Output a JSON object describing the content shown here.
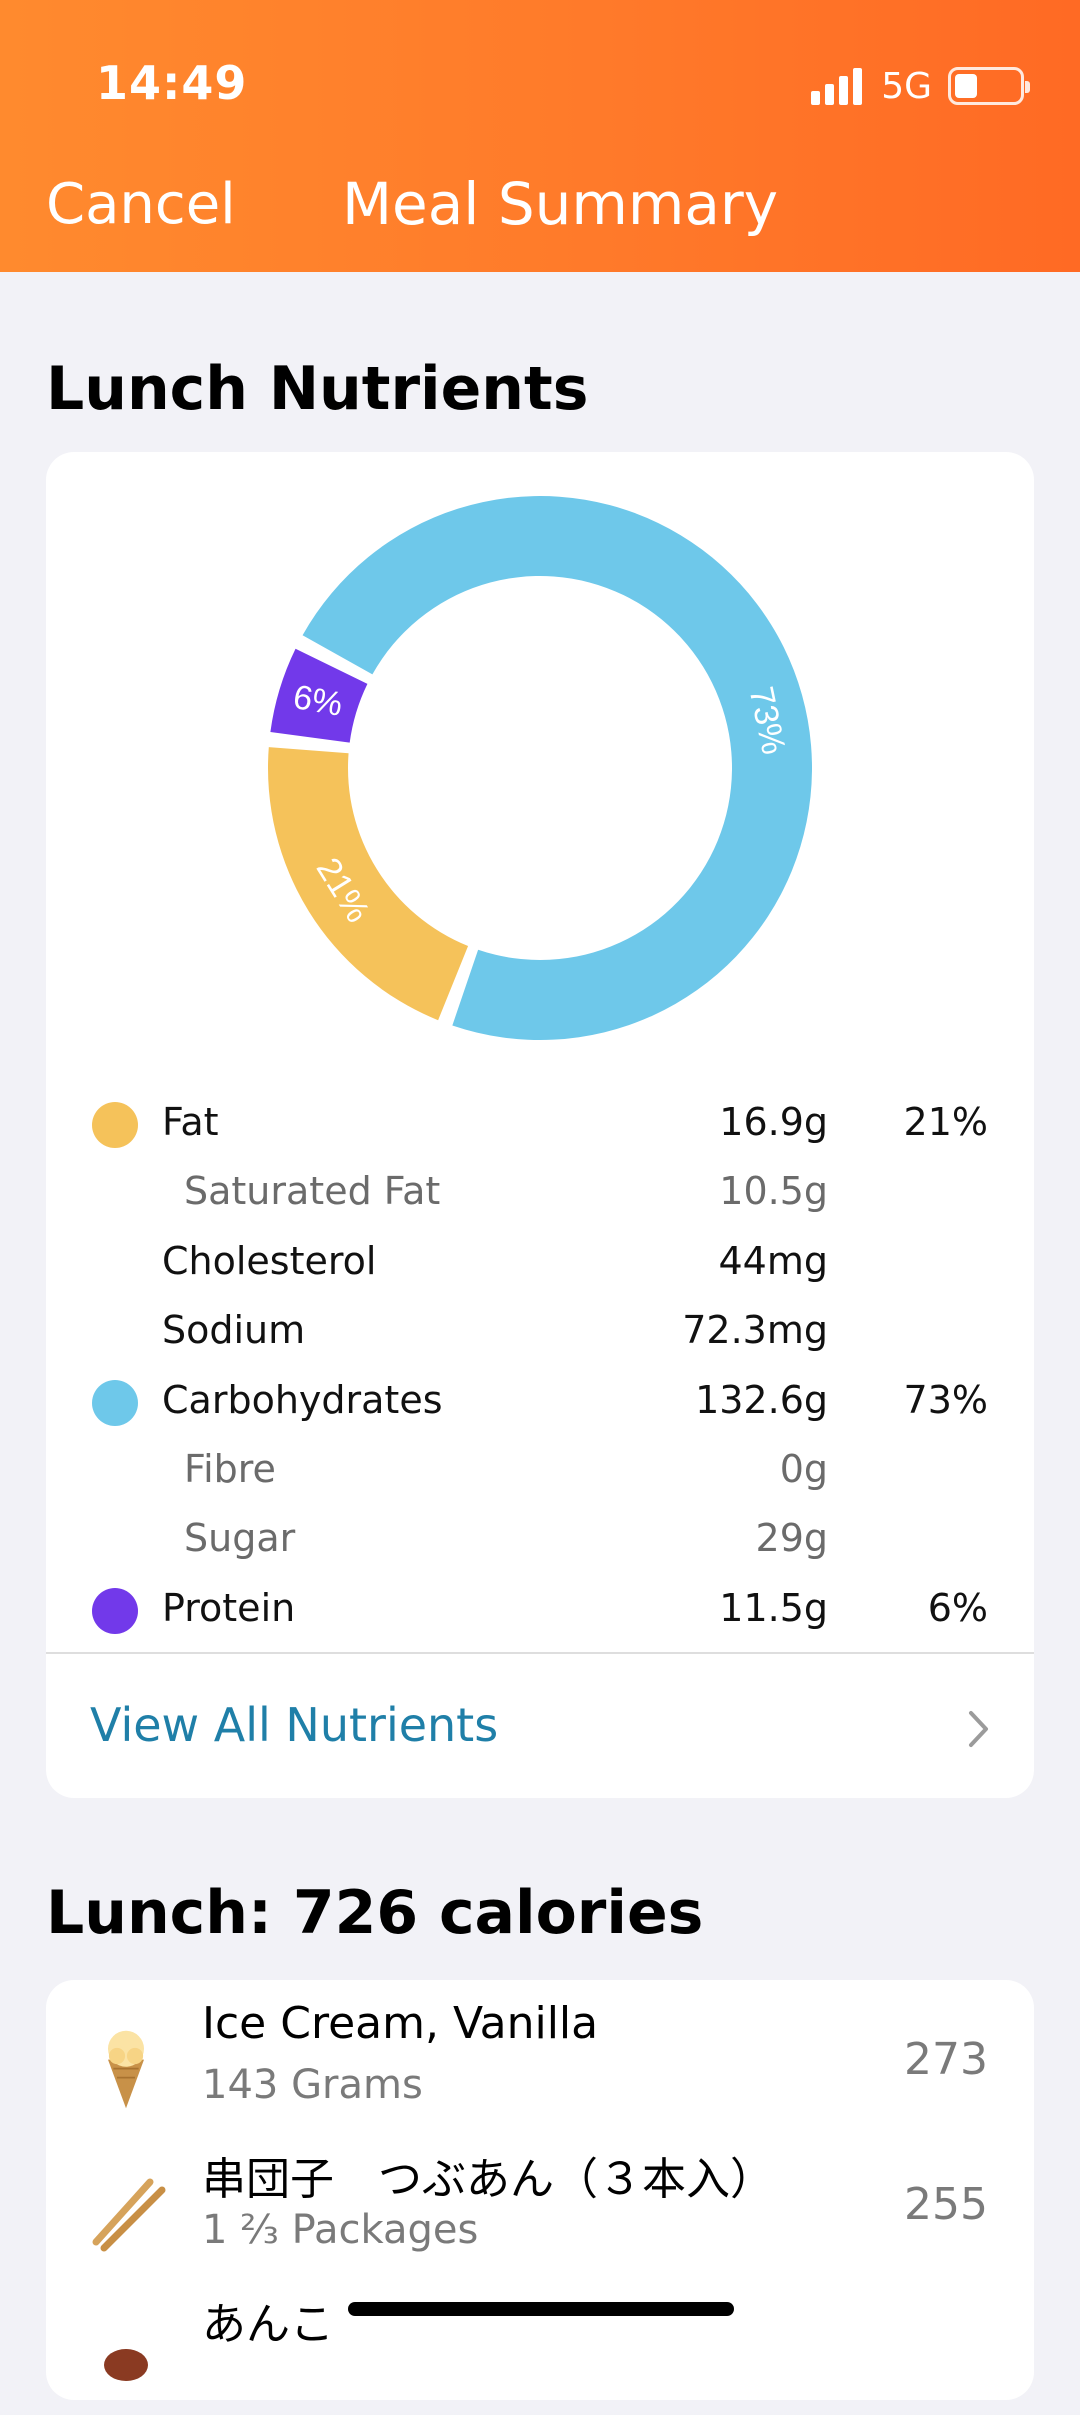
{
  "status": {
    "time": "14:49",
    "network": "5G"
  },
  "nav": {
    "cancel": "Cancel",
    "title": "Meal Summary"
  },
  "nutrients": {
    "heading": "Lunch Nutrients",
    "chart_data": {
      "type": "pie",
      "categories": [
        "Fat",
        "Carbohydrates",
        "Protein"
      ],
      "values": [
        21,
        73,
        6
      ],
      "labels": [
        "21%",
        "73%",
        "6%"
      ],
      "colors": [
        "#f5c25a",
        "#6ec8ea",
        "#7239ea"
      ]
    },
    "rows": [
      {
        "label": "Fat",
        "amount": "16.9g",
        "pct": "21%",
        "color": "#f5c25a",
        "sub": false
      },
      {
        "label": "Saturated Fat",
        "amount": "10.5g",
        "pct": "",
        "color": "",
        "sub": true
      },
      {
        "label": "Cholesterol",
        "amount": "44mg",
        "pct": "",
        "color": "",
        "sub": false
      },
      {
        "label": "Sodium",
        "amount": "72.3mg",
        "pct": "",
        "color": "",
        "sub": false
      },
      {
        "label": "Carbohydrates",
        "amount": "132.6g",
        "pct": "73%",
        "color": "#6ec8ea",
        "sub": false
      },
      {
        "label": "Fibre",
        "amount": "0g",
        "pct": "",
        "color": "",
        "sub": true
      },
      {
        "label": "Sugar",
        "amount": "29g",
        "pct": "",
        "color": "",
        "sub": true
      },
      {
        "label": "Protein",
        "amount": "11.5g",
        "pct": "6%",
        "color": "#7239ea",
        "sub": false
      }
    ],
    "view_all": "View All Nutrients"
  },
  "lunch": {
    "heading": "Lunch: 726 calories",
    "items": [
      {
        "name": "Ice Cream, Vanilla",
        "qty": "143 Grams",
        "calories": "273",
        "icon": "ice-cream-icon"
      },
      {
        "name": "串団子　つぶあん（３本入）",
        "qty": "1 ⅔ Packages",
        "calories": "255",
        "icon": "skewer-icon"
      },
      {
        "name": "あんこ",
        "qty": "",
        "calories": "",
        "icon": "food-icon"
      }
    ]
  }
}
